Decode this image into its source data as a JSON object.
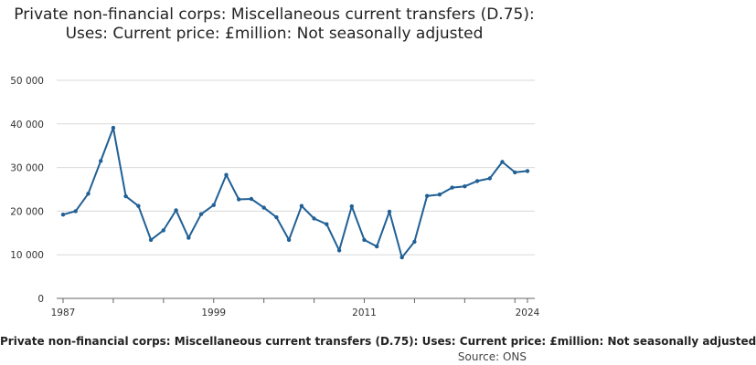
{
  "chart_data": {
    "type": "line",
    "title": "Private non-financial corps: Miscellaneous current transfers (D.75): Uses: Current price: £million: Not seasonally adjusted",
    "xlabel": "",
    "ylabel": "",
    "x": [
      1987,
      1988,
      1989,
      1990,
      1991,
      1992,
      1993,
      1994,
      1995,
      1996,
      1997,
      1998,
      1999,
      2000,
      2001,
      2002,
      2003,
      2004,
      2005,
      2006,
      2007,
      2008,
      2009,
      2010,
      2011,
      2012,
      2013,
      2014,
      2015,
      2016,
      2017,
      2018,
      2019,
      2020,
      2021,
      2022,
      2023,
      2024
    ],
    "series": [
      {
        "values": [
          19200,
          20000,
          24000,
          31500,
          39100,
          23400,
          21200,
          13400,
          15600,
          20200,
          13900,
          19300,
          21400,
          28300,
          22700,
          22800,
          20800,
          18600,
          13400,
          21200,
          18300,
          17000,
          11000,
          21100,
          13400,
          11900,
          19900,
          9400,
          13000,
          23500,
          23800,
          25400,
          25700,
          26900,
          27500,
          31300,
          28900,
          29200
        ]
      }
    ],
    "x_ticks": [
      "1987",
      "1999",
      "2011",
      "2024"
    ],
    "y_ticks": [
      "0",
      "10 000",
      "20 000",
      "30 000",
      "40 000",
      "50 000"
    ],
    "xlim": [
      1987,
      2024
    ],
    "ylim": [
      0,
      50000
    ],
    "grid": true,
    "line_color": "#206095"
  },
  "footer": {
    "caption": "Private non-financial corps: Miscellaneous current transfers (D.75): Uses: Current price: £million: Not seasonally adjusted",
    "source": "Source: ONS"
  }
}
